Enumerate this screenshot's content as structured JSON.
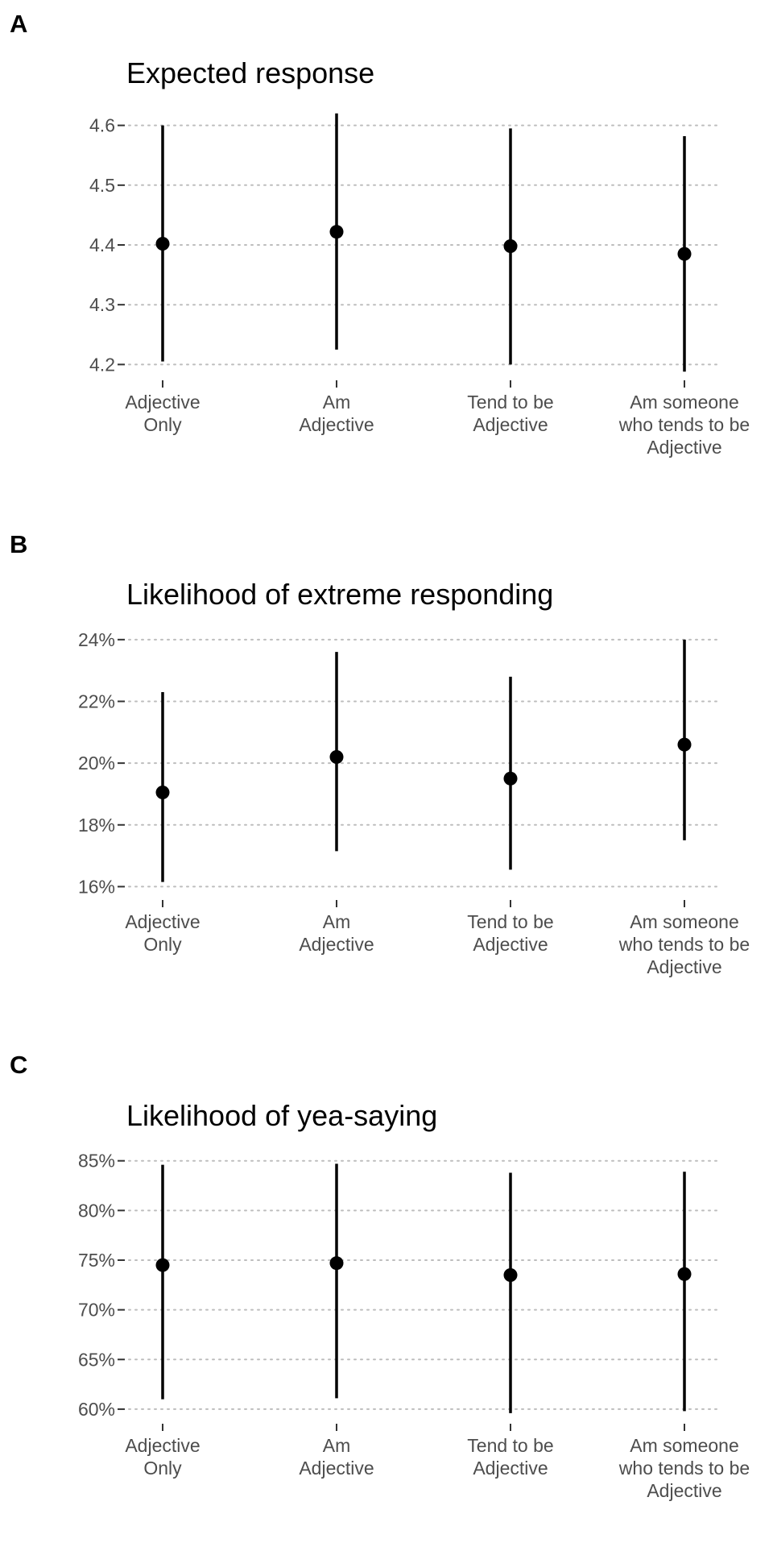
{
  "chart_data": [
    {
      "panel": "A",
      "type": "scatter",
      "title": "Expected response",
      "categories": [
        "Adjective\nOnly",
        "Am\nAdjective",
        "Tend to be\nAdjective",
        "Am someone\nwho tends to be\nAdjective"
      ],
      "values": [
        4.402,
        4.422,
        4.398,
        4.385
      ],
      "lower": [
        4.205,
        4.225,
        4.2,
        4.188
      ],
      "upper": [
        4.6,
        4.62,
        4.595,
        4.582
      ],
      "yticks": [
        4.2,
        4.3,
        4.4,
        4.5,
        4.6
      ],
      "ytick_labels": [
        "4.2",
        "4.3",
        "4.4",
        "4.5",
        "4.6"
      ],
      "ylim": [
        4.183,
        4.617
      ],
      "grid": "horizontal dotted"
    },
    {
      "panel": "B",
      "type": "scatter",
      "title": "Likelihood of extreme responding",
      "categories": [
        "Adjective\nOnly",
        "Am\nAdjective",
        "Tend to be\nAdjective",
        "Am someone\nwho tends to be\nAdjective"
      ],
      "values": [
        19.05,
        20.2,
        19.5,
        20.6
      ],
      "lower": [
        16.15,
        17.15,
        16.55,
        17.5
      ],
      "upper": [
        22.3,
        23.6,
        22.8,
        24.0
      ],
      "yticks": [
        16,
        18,
        20,
        22,
        24
      ],
      "ytick_labels": [
        "16%",
        "18%",
        "20%",
        "22%",
        "24%"
      ],
      "ylim": [
        15.75,
        24.1
      ],
      "grid": "horizontal dotted"
    },
    {
      "panel": "C",
      "type": "scatter",
      "title": "Likelihood of yea-saying",
      "categories": [
        "Adjective\nOnly",
        "Am\nAdjective",
        "Tend to be\nAdjective",
        "Am someone\nwho tends to be\nAdjective"
      ],
      "values": [
        74.5,
        74.7,
        73.5,
        73.6
      ],
      "lower": [
        61.0,
        61.1,
        59.6,
        59.8
      ],
      "upper": [
        84.6,
        84.7,
        83.8,
        83.9
      ],
      "yticks": [
        60,
        65,
        70,
        75,
        80,
        85
      ],
      "ytick_labels": [
        "60%",
        "65%",
        "70%",
        "75%",
        "80%",
        "85%"
      ],
      "ylim": [
        59.1,
        85.3
      ],
      "grid": "horizontal dotted"
    }
  ]
}
